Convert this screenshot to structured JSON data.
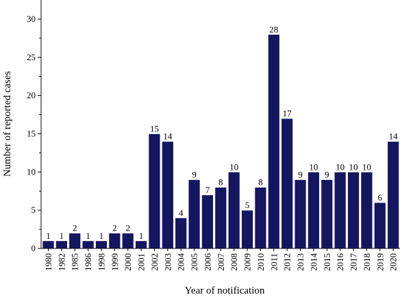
{
  "chart_data": {
    "type": "bar",
    "title": "",
    "xlabel": "Year of notification",
    "ylabel": "Number of reported cases",
    "ylim": [
      0,
      32.5
    ],
    "yticks": [
      0,
      5,
      10,
      15,
      20,
      25,
      30
    ],
    "grid": false,
    "legend": "none",
    "bar_color": "#14175f",
    "categories": [
      "1980",
      "1982",
      "1985",
      "1986",
      "1998",
      "1999",
      "2000",
      "2001",
      "2002",
      "2003",
      "2004",
      "2005",
      "2006",
      "2007",
      "2008",
      "2009",
      "2010",
      "2011",
      "2012",
      "2013",
      "2014",
      "2015",
      "2016",
      "2017",
      "2018",
      "2019",
      "2020"
    ],
    "values": [
      1,
      1,
      2,
      1,
      1,
      2,
      2,
      1,
      15,
      14,
      4,
      9,
      7,
      8,
      10,
      5,
      8,
      28,
      17,
      9,
      10,
      9,
      10,
      10,
      10,
      6,
      14
    ]
  }
}
